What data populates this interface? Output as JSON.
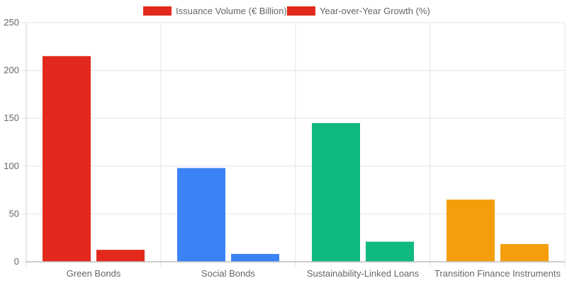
{
  "chart_data": {
    "type": "bar",
    "categories": [
      "Green Bonds",
      "Social Bonds",
      "Sustainability-Linked Loans",
      "Transition Finance Instruments"
    ],
    "series": [
      {
        "name": "Issuance Volume (€ Billion)",
        "values": [
          215,
          98,
          145,
          65
        ],
        "colors": [
          "#e3291d",
          "#3b82f6",
          "#10b981",
          "#f59e0b"
        ],
        "legend_color": "#e3291d"
      },
      {
        "name": "Year-over-Year Growth (%)",
        "values": [
          12.5,
          8.2,
          21.0,
          18.5
        ],
        "colors": [
          "#e3291d",
          "#3b82f6",
          "#10b981",
          "#f59e0b"
        ],
        "legend_color": "#e3291d"
      }
    ],
    "yticks": [
      "0",
      "50",
      "100",
      "150",
      "200",
      "250"
    ],
    "ylim": [
      0,
      250
    ],
    "grid": true,
    "legend_position": "top",
    "title": "",
    "xlabel": "",
    "ylabel": ""
  }
}
